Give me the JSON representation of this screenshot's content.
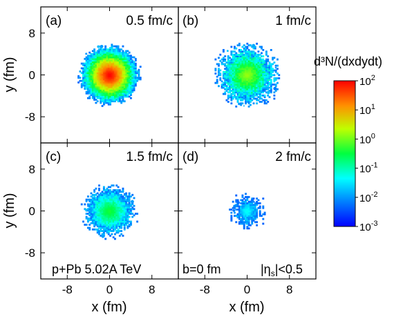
{
  "chart_data": {
    "type": "heatmap",
    "colorbar": {
      "title": "d³N/(dxdydt)",
      "scale": "log",
      "range": [
        0.001,
        100
      ],
      "ticks": [
        {
          "value": 100,
          "base": "10",
          "exp": "2"
        },
        {
          "value": 10,
          "base": "10",
          "exp": "1"
        },
        {
          "value": 1,
          "base": "10",
          "exp": "0"
        },
        {
          "value": 0.1,
          "base": "10",
          "exp": "-1"
        },
        {
          "value": 0.01,
          "base": "10",
          "exp": "-2"
        },
        {
          "value": 0.001,
          "base": "10",
          "exp": "-3"
        }
      ]
    },
    "xlabel": "x (fm)",
    "ylabel": "y (fm)",
    "xlim": [
      -13,
      13
    ],
    "ylim": [
      -13,
      13
    ],
    "xticks": [
      {
        "value": -8,
        "label": "-8"
      },
      {
        "value": 0,
        "label": "0"
      },
      {
        "value": 8,
        "label": "8"
      }
    ],
    "yticks": [
      {
        "value": 8,
        "label": "8"
      },
      {
        "value": 0,
        "label": "0"
      },
      {
        "value": -8,
        "label": "-8"
      }
    ],
    "panels": [
      {
        "id": "(a)",
        "time": "0.5 fm/c",
        "peak": 100,
        "edge": 0.005,
        "radius_fm": 5.5,
        "roughness": 0.1
      },
      {
        "id": "(b)",
        "time": "1 fm/c",
        "peak": 1.5,
        "edge": 0.005,
        "radius_fm": 5.0,
        "roughness": 0.28
      },
      {
        "id": "(c)",
        "time": "1.5 fm/c",
        "peak": 0.4,
        "edge": 0.005,
        "radius_fm": 4.3,
        "roughness": 0.26
      },
      {
        "id": "(d)",
        "time": "2 fm/c",
        "peak": 0.05,
        "edge": 0.004,
        "radius_fm": 2.3,
        "roughness": 0.45
      }
    ]
  },
  "notes": {
    "system": "p+Pb 5.02A TeV",
    "impact": "b=0 fm",
    "rapidity_prefix": "|η",
    "rapidity_sub": "s",
    "rapidity_suffix": "|<0.5"
  },
  "colors": {
    "colormap": [
      "#0000ff",
      "#00bfff",
      "#00ff66",
      "#bfff00",
      "#ffff00",
      "#ff8000",
      "#ff0000"
    ]
  }
}
